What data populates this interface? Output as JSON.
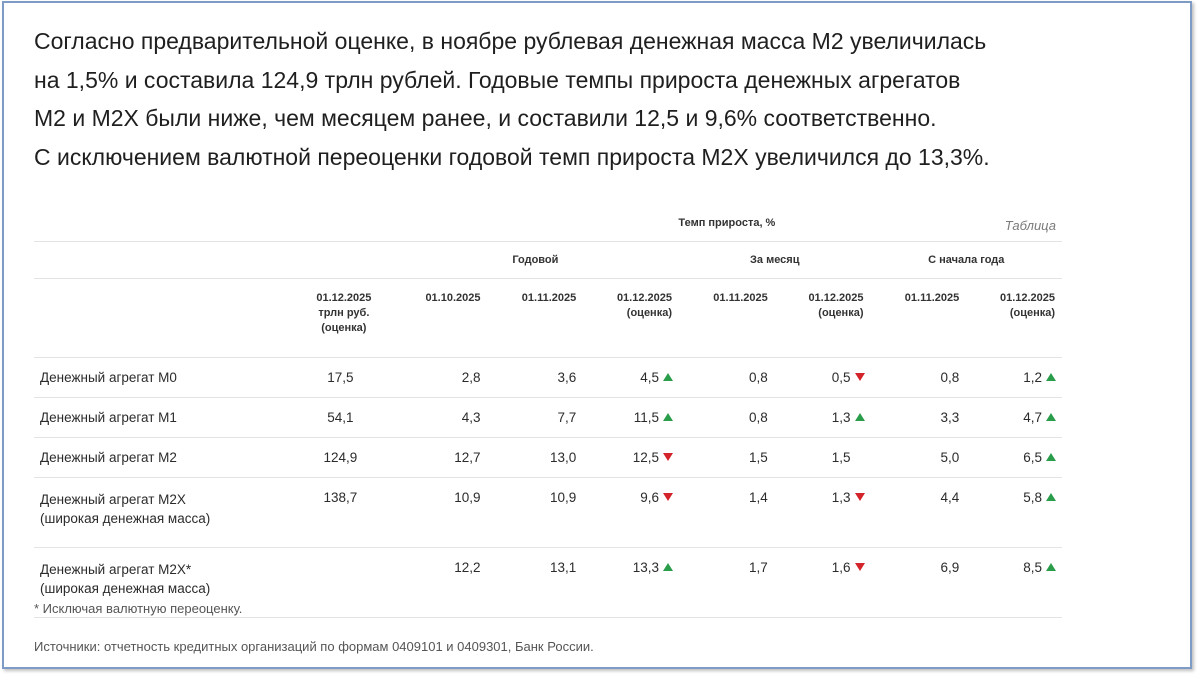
{
  "intro": [
    "Согласно предварительной оценке, в ноябре рублевая денежная масса М2 увеличилась",
    "на 1,5% и составила 124,9 трлн рублей. Годовые темпы прироста денежных агрегатов",
    "М2 и М2Х были ниже, чем месяцем ранее, и составили 12,5 и 9,6% соответственно.",
    "С исключением валютной переоценки годовой темп прироста М2Х увеличился до 13,3%."
  ],
  "table": {
    "caption": "Таблица",
    "group_header": "Темп прироста, %",
    "subgroups": [
      "Годовой",
      "За месяц",
      "С начала года"
    ],
    "columns": [
      [
        "01.12.2025",
        "трлн руб.",
        "(оценка)"
      ],
      [
        "01.10.2025"
      ],
      [
        "01.11.2025"
      ],
      [
        "01.12.2025",
        "(оценка)"
      ],
      [
        "01.11.2025"
      ],
      [
        "01.12.2025",
        "(оценка)"
      ],
      [
        "01.11.2025"
      ],
      [
        "01.12.2025",
        "(оценка)"
      ]
    ],
    "rows": [
      {
        "label": [
          "Денежный агрегат М0"
        ],
        "cells": [
          {
            "v": "17,5"
          },
          {
            "v": "2,8"
          },
          {
            "v": "3,6"
          },
          {
            "v": "4,5",
            "dir": "up"
          },
          {
            "v": "0,8"
          },
          {
            "v": "0,5",
            "dir": "down"
          },
          {
            "v": "0,8"
          },
          {
            "v": "1,2",
            "dir": "up"
          }
        ]
      },
      {
        "label": [
          "Денежный агрегат М1"
        ],
        "cells": [
          {
            "v": "54,1"
          },
          {
            "v": "4,3"
          },
          {
            "v": "7,7"
          },
          {
            "v": "11,5",
            "dir": "up"
          },
          {
            "v": "0,8"
          },
          {
            "v": "1,3",
            "dir": "up"
          },
          {
            "v": "3,3"
          },
          {
            "v": "4,7",
            "dir": "up"
          }
        ]
      },
      {
        "label": [
          "Денежный агрегат М2"
        ],
        "cells": [
          {
            "v": "124,9"
          },
          {
            "v": "12,7"
          },
          {
            "v": "13,0"
          },
          {
            "v": "12,5",
            "dir": "down"
          },
          {
            "v": "1,5"
          },
          {
            "v": "1,5",
            "dir": "none"
          },
          {
            "v": "5,0"
          },
          {
            "v": "6,5",
            "dir": "up"
          }
        ]
      },
      {
        "label": [
          "Денежный агрегат М2Х",
          "(широкая денежная масса)"
        ],
        "cells": [
          {
            "v": "138,7"
          },
          {
            "v": "10,9"
          },
          {
            "v": "10,9"
          },
          {
            "v": "9,6",
            "dir": "down"
          },
          {
            "v": "1,4"
          },
          {
            "v": "1,3",
            "dir": "down"
          },
          {
            "v": "4,4"
          },
          {
            "v": "5,8",
            "dir": "up"
          }
        ]
      },
      {
        "label": [
          "Денежный агрегат М2Х*",
          "(широкая денежная масса)"
        ],
        "cells": [
          {
            "v": ""
          },
          {
            "v": "12,2"
          },
          {
            "v": "13,1"
          },
          {
            "v": "13,3",
            "dir": "up"
          },
          {
            "v": "1,7"
          },
          {
            "v": "1,6",
            "dir": "down"
          },
          {
            "v": "6,9"
          },
          {
            "v": "8,5",
            "dir": "up"
          }
        ]
      }
    ]
  },
  "footnote": "* Исключая валютную переоценку.",
  "sources": "Источники: отчетность кредитных организаций по формам 0409101 и 0409301, Банк России.",
  "colors": {
    "up": "#2a9d4b",
    "down": "#d3242c",
    "frame": "#7d9bc4"
  },
  "icons": {
    "up": "triangle-up-icon",
    "down": "triangle-down-icon"
  }
}
